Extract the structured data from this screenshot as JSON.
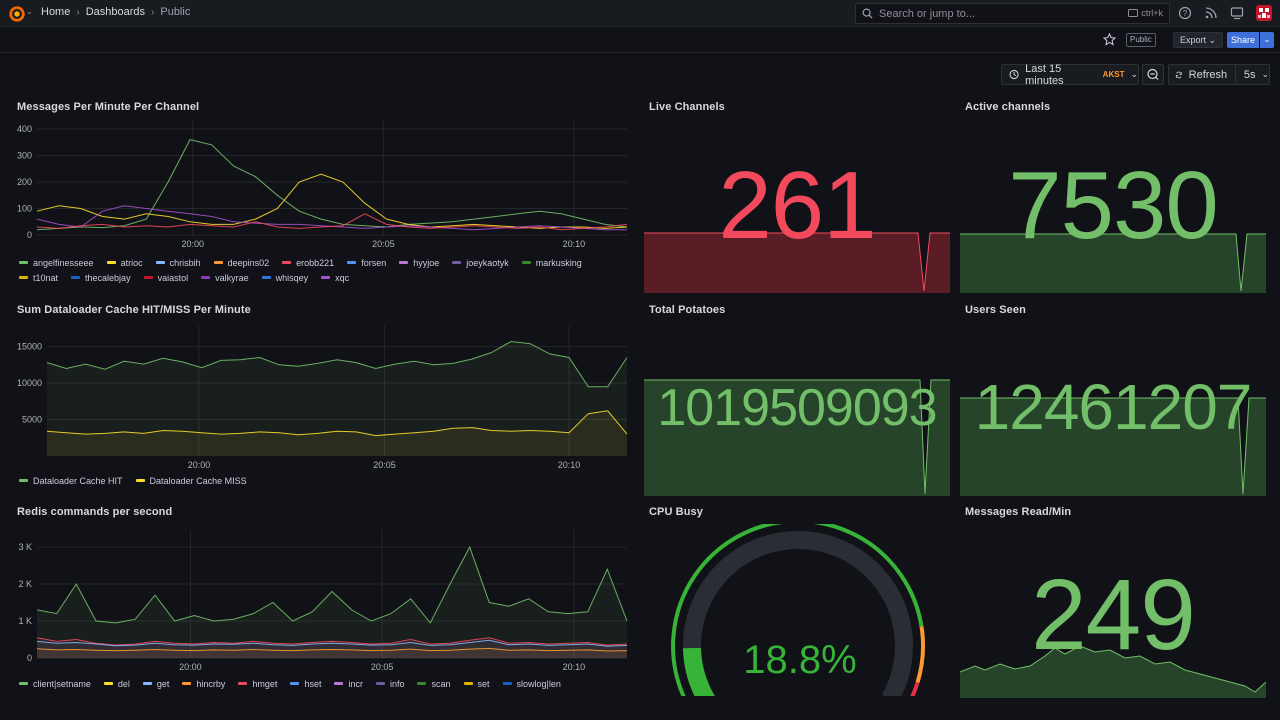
{
  "topbar": {
    "breadcrumbs": [
      "Home",
      "Dashboards",
      "Public"
    ],
    "search_placeholder": "Search or jump to...",
    "search_shortcut": "ctrl+k"
  },
  "toolbar": {
    "public_label": "Public",
    "export_label": "Export",
    "share_label": "Share",
    "time_range": "Last 15 minutes",
    "timezone": "AKST",
    "refresh_label": "Refresh",
    "refresh_interval": "5s"
  },
  "colors": {
    "background": "#111217",
    "panel_text": "#d8d9dd",
    "green": "#73bf69",
    "red": "#f2495c",
    "yellow": "#fade2a",
    "orange": "#ff9830",
    "blue": "#5794f2",
    "gauge_green": "#37b338"
  },
  "panels": {
    "messages": {
      "title": "Messages Per Minute Per Channel",
      "y_ticks": [
        "400",
        "300",
        "200",
        "100",
        "0"
      ],
      "x_ticks": [
        "20:00",
        "20:05",
        "20:10"
      ],
      "legend": [
        {
          "name": "angelfinesseee",
          "color": "#73bf69"
        },
        {
          "name": "atrioc",
          "color": "#fade2a"
        },
        {
          "name": "chrisbih",
          "color": "#8ab8ff"
        },
        {
          "name": "deepins02",
          "color": "#ff9830"
        },
        {
          "name": "erobb221",
          "color": "#f2495c"
        },
        {
          "name": "forsen",
          "color": "#5794f2"
        },
        {
          "name": "hyyjoe",
          "color": "#b877d9"
        },
        {
          "name": "joeykaotyk",
          "color": "#705da0"
        },
        {
          "name": "markusking",
          "color": "#37872d"
        },
        {
          "name": "t10nat",
          "color": "#e0b400"
        },
        {
          "name": "thecalebjay",
          "color": "#1f60c4"
        },
        {
          "name": "vaiastol",
          "color": "#c4162a"
        },
        {
          "name": "valkyrae",
          "color": "#8f3bb8"
        },
        {
          "name": "whisqey",
          "color": "#3274d9"
        },
        {
          "name": "xqc",
          "color": "#a352cc"
        }
      ]
    },
    "dataloader": {
      "title": "Sum Dataloader Cache HIT/MISS Per Minute",
      "y_ticks": [
        "15000",
        "10000",
        "5000"
      ],
      "x_ticks": [
        "20:00",
        "20:05",
        "20:10"
      ],
      "legend": [
        {
          "name": "Dataloader Cache HIT",
          "color": "#73bf69"
        },
        {
          "name": "Dataloader Cache MISS",
          "color": "#fade2a"
        }
      ]
    },
    "redis": {
      "title": "Redis commands per second",
      "y_ticks": [
        "3 K",
        "2 K",
        "1 K",
        "0"
      ],
      "x_ticks": [
        "20:00",
        "20:05",
        "20:10"
      ],
      "legend": [
        {
          "name": "client|setname",
          "color": "#73bf69"
        },
        {
          "name": "del",
          "color": "#fade2a"
        },
        {
          "name": "get",
          "color": "#8ab8ff"
        },
        {
          "name": "hincrby",
          "color": "#ff9830"
        },
        {
          "name": "hmget",
          "color": "#f2495c"
        },
        {
          "name": "hset",
          "color": "#5794f2"
        },
        {
          "name": "incr",
          "color": "#b877d9"
        },
        {
          "name": "info",
          "color": "#705da0"
        },
        {
          "name": "scan",
          "color": "#37872d"
        },
        {
          "name": "set",
          "color": "#e0b400"
        },
        {
          "name": "slowlog|len",
          "color": "#1f60c4"
        }
      ]
    },
    "live_channels": {
      "title": "Live Channels",
      "value": "261"
    },
    "active_channels": {
      "title": "Active channels",
      "value": "7530"
    },
    "total_potatoes": {
      "title": "Total Potatoes",
      "value": "1019509093"
    },
    "users_seen": {
      "title": "Users Seen",
      "value": "12461207"
    },
    "cpu_busy": {
      "title": "CPU Busy",
      "value": "18.8%",
      "percent": 18.8
    },
    "messages_read": {
      "title": "Messages Read/Min",
      "value": "249"
    }
  },
  "chart_data": [
    {
      "type": "line",
      "title": "Messages Per Minute Per Channel",
      "x_ticks": [
        "20:00",
        "20:05",
        "20:10"
      ],
      "ylim": [
        0,
        400
      ],
      "series": [
        {
          "name": "angelfinesseee",
          "values": [
            20,
            25,
            30,
            28,
            35,
            60,
            200,
            360,
            340,
            260,
            220,
            150,
            90,
            60,
            40,
            35,
            30,
            40,
            45,
            50,
            60,
            70,
            80,
            90,
            80,
            60,
            40,
            30
          ]
        },
        {
          "name": "atrioc",
          "values": [
            90,
            110,
            100,
            70,
            60,
            80,
            70,
            50,
            40,
            40,
            60,
            100,
            200,
            230,
            200,
            120,
            60,
            40,
            30,
            35,
            40,
            35,
            30,
            25,
            30,
            30,
            25,
            30
          ]
        },
        {
          "name": "xqc",
          "values": [
            60,
            40,
            30,
            90,
            110,
            100,
            90,
            80,
            70,
            50,
            45,
            40,
            40,
            35,
            30,
            25,
            30,
            35,
            30,
            25,
            20,
            25,
            30,
            35,
            30,
            25,
            20,
            20
          ]
        },
        {
          "name": "erobb221",
          "values": [
            30,
            25,
            35,
            40,
            30,
            35,
            30,
            40,
            35,
            30,
            50,
            30,
            25,
            30,
            35,
            80,
            40,
            30,
            25,
            30,
            35,
            30,
            25,
            30,
            20,
            25,
            30,
            40
          ]
        }
      ]
    },
    {
      "type": "area",
      "title": "Sum Dataloader Cache HIT/MISS Per Minute",
      "x_ticks": [
        "20:00",
        "20:05",
        "20:10"
      ],
      "ylim": [
        0,
        17000
      ],
      "series": [
        {
          "name": "Dataloader Cache HIT",
          "values": [
            12800,
            12000,
            12600,
            11900,
            13000,
            12600,
            13400,
            12900,
            12100,
            13100,
            13200,
            13500,
            12500,
            12300,
            12700,
            13200,
            12800,
            12000,
            12600,
            13000,
            12500,
            12700,
            13300,
            14200,
            15700,
            15400,
            14000,
            13500,
            9500,
            9500,
            13500
          ]
        },
        {
          "name": "Dataloader Cache MISS",
          "values": [
            3400,
            3200,
            3000,
            3100,
            3300,
            3100,
            3500,
            3400,
            3200,
            3000,
            3100,
            3300,
            3200,
            2900,
            3100,
            3400,
            3300,
            2800,
            3000,
            3200,
            3400,
            3800,
            3900,
            3500,
            3400,
            3500,
            3400,
            3200,
            5800,
            6200,
            3000
          ]
        }
      ]
    },
    {
      "type": "area",
      "title": "Redis commands per second",
      "x_ticks": [
        "20:00",
        "20:05",
        "20:10"
      ],
      "ylim": [
        0,
        3300
      ],
      "series": [
        {
          "name": "client|setname",
          "values": [
            1300,
            1200,
            2000,
            1000,
            950,
            1050,
            1700,
            1000,
            1150,
            1000,
            1050,
            1200,
            1500,
            1000,
            1250,
            1800,
            1300,
            1000,
            1200,
            1600,
            950,
            2000,
            3000,
            1500,
            1400,
            1600,
            1250,
            1200,
            1250,
            2400,
            1000
          ]
        },
        {
          "name": "hmget",
          "values": [
            550,
            450,
            500,
            400,
            350,
            380,
            450,
            400,
            380,
            420,
            400,
            450,
            400,
            380,
            420,
            450,
            420,
            380,
            400,
            500,
            380,
            400,
            480,
            550,
            400,
            420,
            380,
            400,
            420,
            350,
            380
          ]
        },
        {
          "name": "get",
          "values": [
            450,
            400,
            420,
            380,
            330,
            350,
            400,
            360,
            350,
            380,
            370,
            400,
            360,
            340,
            380,
            400,
            380,
            350,
            360,
            420,
            340,
            360,
            420,
            480,
            360,
            380,
            340,
            360,
            380,
            320,
            340
          ]
        },
        {
          "name": "hincrby",
          "values": [
            250,
            220,
            230,
            210,
            200,
            210,
            230,
            210,
            200,
            220,
            210,
            230,
            210,
            200,
            220,
            230,
            220,
            200,
            210,
            240,
            200,
            210,
            240,
            260,
            210,
            220,
            200,
            210,
            220,
            190,
            200
          ]
        }
      ]
    }
  ]
}
